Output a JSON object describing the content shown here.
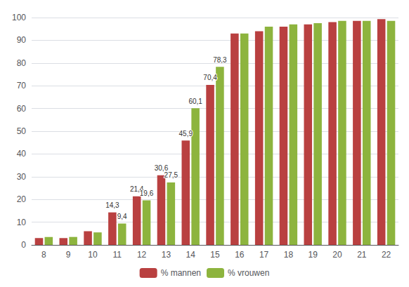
{
  "chart_data": {
    "type": "bar",
    "categories": [
      "8",
      "9",
      "10",
      "11",
      "12",
      "13",
      "14",
      "15",
      "16",
      "17",
      "18",
      "19",
      "20",
      "21",
      "22"
    ],
    "series": [
      {
        "name": "% mannen",
        "color": "#b94040",
        "values": [
          3.0,
          3.0,
          6.0,
          14.3,
          21.4,
          30.6,
          45.9,
          70.4,
          93.0,
          94.0,
          96.0,
          97.0,
          98.0,
          98.5,
          99.3
        ],
        "value_labels": [
          null,
          null,
          null,
          "14,3",
          "21,4",
          "30,6",
          "45,9",
          "70,4",
          null,
          null,
          null,
          null,
          null,
          null,
          null
        ]
      },
      {
        "name": "% vrouwen",
        "color": "#8db43e",
        "values": [
          3.5,
          3.5,
          5.5,
          9.4,
          19.6,
          27.5,
          60.1,
          78.3,
          93.0,
          96.0,
          97.0,
          97.5,
          98.5,
          98.5,
          98.5
        ],
        "value_labels": [
          null,
          null,
          null,
          "9,4",
          "19,6",
          "27,5",
          "60,1",
          "78,3",
          null,
          null,
          null,
          null,
          null,
          null,
          null
        ]
      }
    ],
    "ylim": [
      0,
      100
    ],
    "yticks": [
      0,
      10,
      20,
      30,
      40,
      50,
      60,
      70,
      80,
      90,
      100
    ],
    "grid": true,
    "legend": "bottom",
    "data_labels": true
  }
}
